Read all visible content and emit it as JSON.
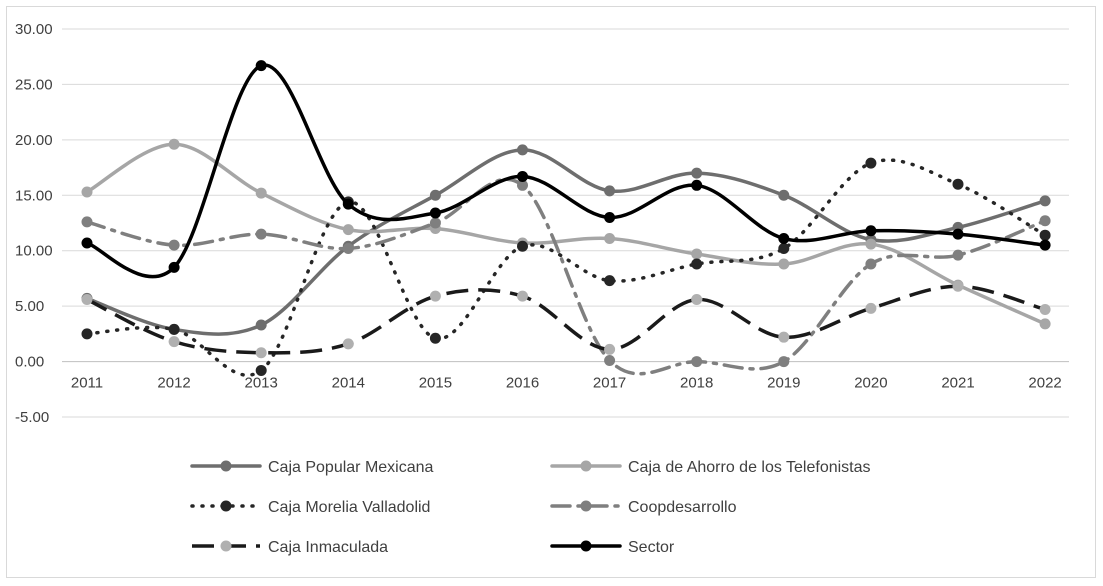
{
  "chart_data": {
    "type": "line",
    "title": "",
    "xlabel": "",
    "ylabel": "",
    "categories": [
      "2011",
      "2012",
      "2013",
      "2014",
      "2015",
      "2016",
      "2017",
      "2018",
      "2019",
      "2020",
      "2021",
      "2022"
    ],
    "y_ticks": [
      "30.00",
      "25.00",
      "20.00",
      "15.00",
      "10.00",
      "5.00",
      "0.00",
      "-5.00"
    ],
    "ylim": [
      -5,
      30
    ],
    "grid": true,
    "legend_position": "bottom",
    "series": [
      {
        "name": "Caja Popular Mexicana",
        "color": "#6e6e6e",
        "dash": "solid",
        "values": [
          5.7,
          2.9,
          3.3,
          10.4,
          15.0,
          19.1,
          15.4,
          17.0,
          15.0,
          11.0,
          12.1,
          14.5
        ]
      },
      {
        "name": "Caja de Ahorro de los Telefonistas",
        "color": "#a6a6a6",
        "dash": "solid",
        "values": [
          15.3,
          19.6,
          15.2,
          11.9,
          12.0,
          10.7,
          11.1,
          9.7,
          8.8,
          10.6,
          6.9,
          3.4
        ]
      },
      {
        "name": "Caja Morelia Valladolid",
        "color": "#262626",
        "dash": "dot",
        "values": [
          2.5,
          2.9,
          -0.8,
          14.4,
          2.1,
          10.4,
          7.3,
          8.8,
          10.2,
          17.9,
          16.0,
          11.4
        ]
      },
      {
        "name": "Coopdesarrollo",
        "color": "#7f7f7f",
        "dash": "dashdot",
        "values": [
          12.6,
          10.5,
          11.5,
          10.2,
          12.5,
          15.9,
          0.1,
          0.0,
          0.0,
          8.8,
          9.6,
          12.7
        ]
      },
      {
        "name": "Caja Inmaculada",
        "color": "#1a1a1a",
        "dash": "longdash",
        "markerColor": "#b0b0b0",
        "values": [
          5.6,
          1.8,
          0.8,
          1.6,
          5.9,
          5.9,
          1.1,
          5.6,
          2.2,
          4.8,
          6.8,
          4.7
        ]
      },
      {
        "name": "Sector",
        "color": "#000000",
        "dash": "solid",
        "values": [
          10.7,
          8.5,
          26.7,
          14.2,
          13.4,
          16.7,
          13.0,
          15.9,
          11.1,
          11.8,
          11.5,
          10.5
        ]
      }
    ]
  }
}
